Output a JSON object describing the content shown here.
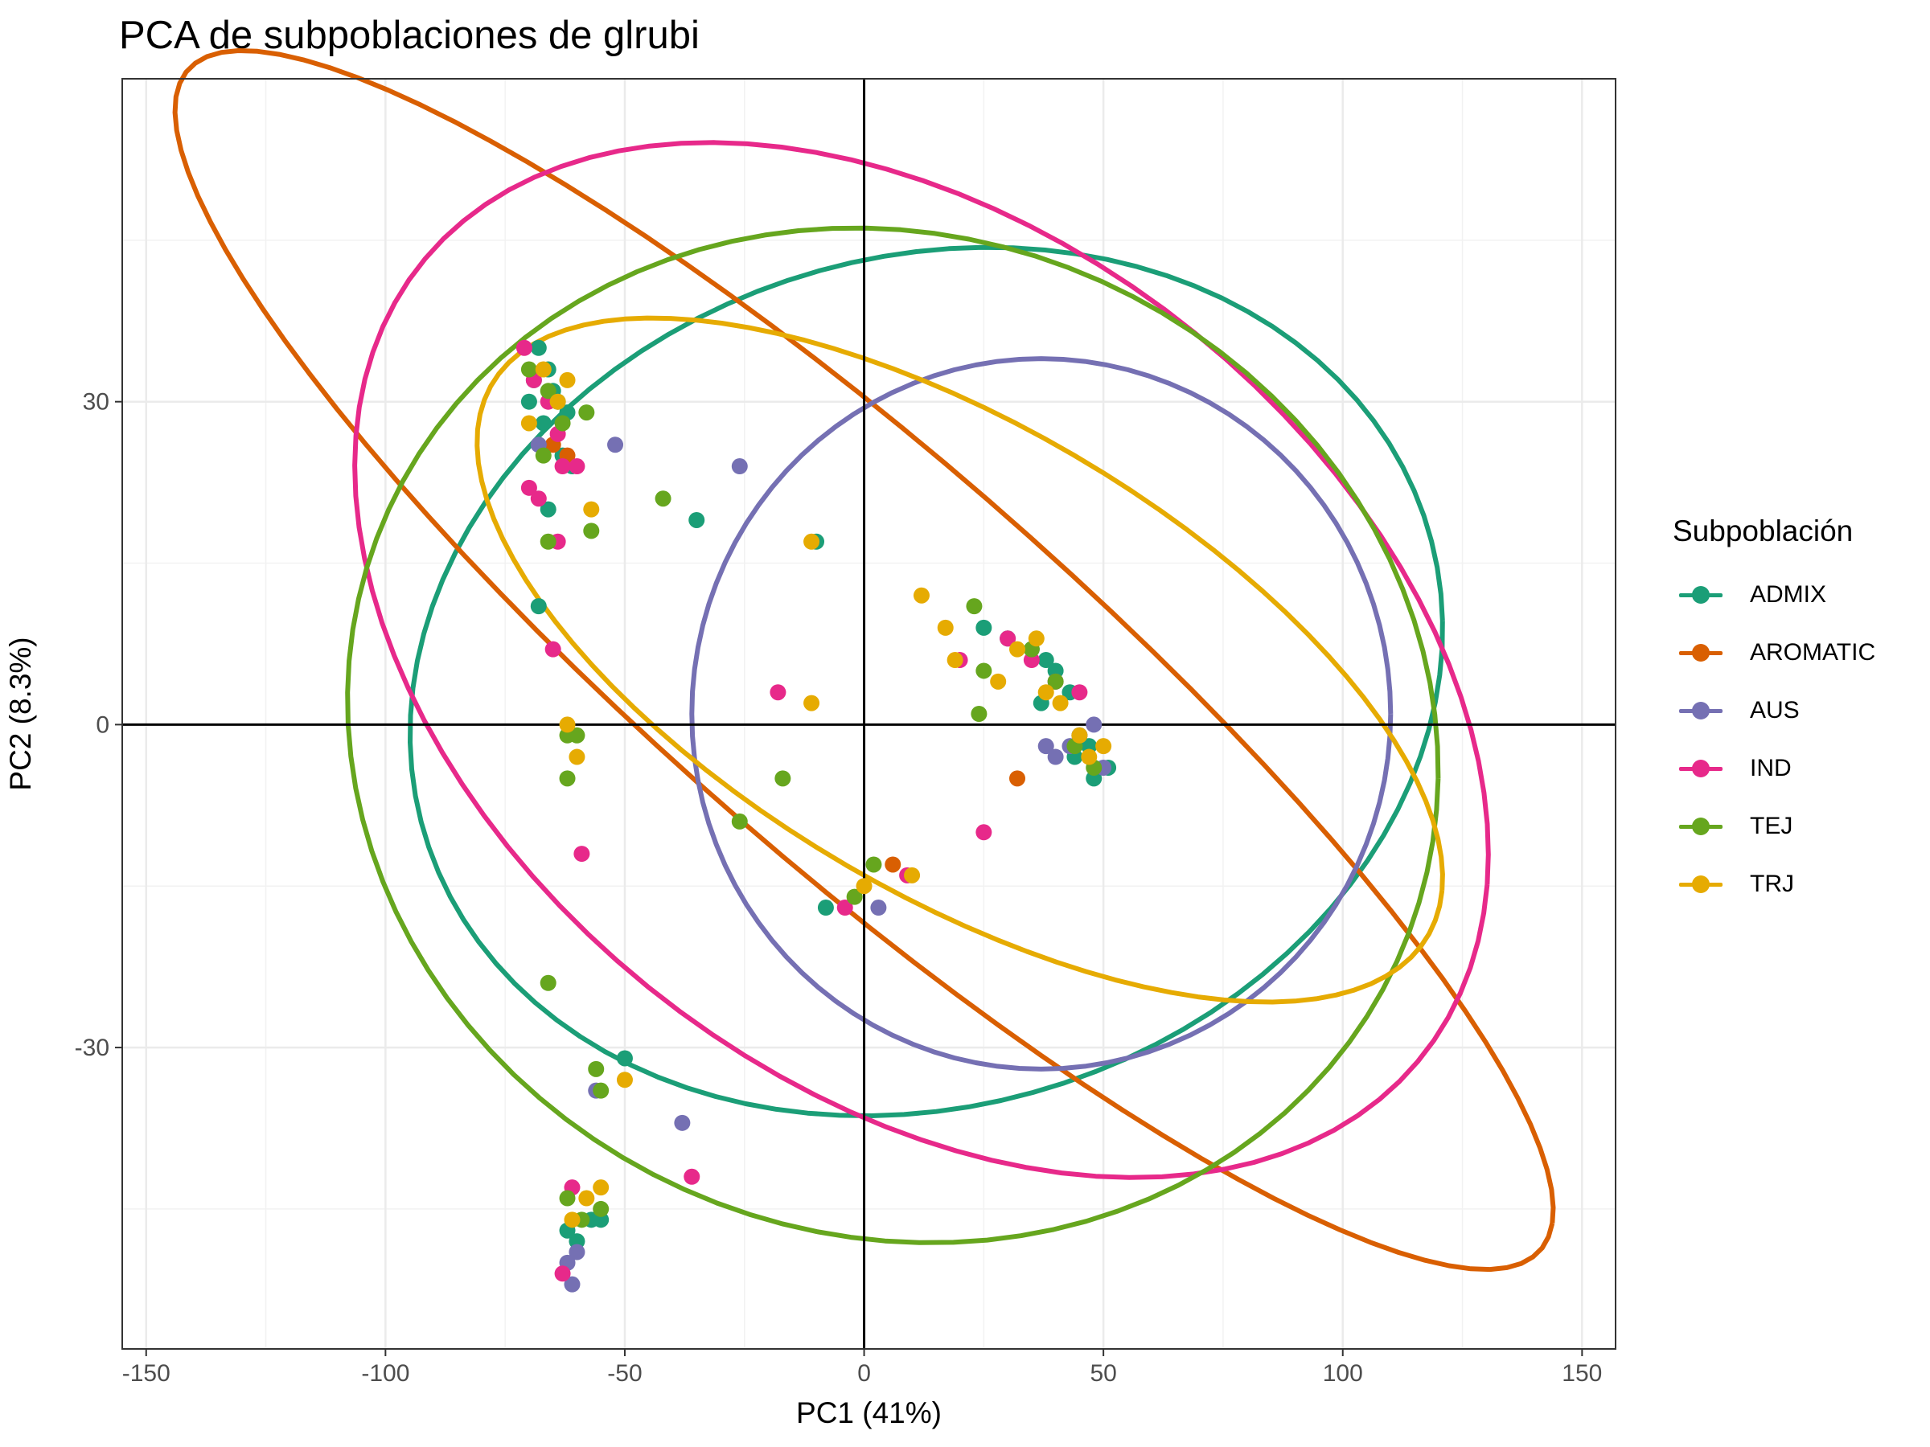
{
  "chart_data": {
    "type": "scatter",
    "title": "PCA de subpoblaciones de glrubi",
    "xlabel": "PC1 (41%)",
    "ylabel": "PC2 (8.3%)",
    "xlim": [
      -155,
      157
    ],
    "ylim": [
      -58,
      60
    ],
    "x_ticks": [
      -150,
      -100,
      -50,
      0,
      50,
      100,
      150
    ],
    "y_ticks": [
      -30,
      0,
      30
    ],
    "grid": true,
    "reference_lines": {
      "x": 0,
      "y": 0
    },
    "legend": {
      "title": "Subpoblación",
      "position": "right"
    },
    "series": [
      {
        "name": "ADMIX",
        "color": "#1B9E77",
        "x": [
          -68,
          -66,
          -65,
          -64,
          -62,
          -67,
          -69,
          -66,
          -63,
          -68,
          -70,
          -61,
          -35,
          -10,
          -8,
          25,
          30,
          35,
          38,
          40,
          43,
          37,
          45,
          47,
          51,
          48,
          44,
          -50,
          -55,
          -60,
          -62,
          -57
        ],
        "y": [
          35,
          33,
          31,
          30,
          29,
          28,
          32,
          20,
          25,
          11,
          30,
          24,
          19,
          17,
          -17,
          9,
          8,
          7,
          6,
          5,
          3,
          2,
          -1,
          -2,
          -4,
          -5,
          -3,
          -31,
          -46,
          -48,
          -47,
          -46
        ],
        "ellipse": {
          "cx": 13,
          "cy": 4,
          "rx": 108,
          "ry": 40,
          "angle": 3
        }
      },
      {
        "name": "AROMATIC",
        "color": "#D95F02",
        "x": [
          -65,
          -62,
          32,
          6
        ],
        "y": [
          26,
          25,
          -5,
          -13
        ],
        "ellipse": {
          "cx": 0,
          "cy": 6,
          "rx": 153,
          "ry": 23,
          "angle": -20
        }
      },
      {
        "name": "AUS",
        "color": "#7570B3",
        "x": [
          -68,
          -52,
          -26,
          3,
          40,
          45,
          48,
          43,
          38,
          50,
          -56,
          -38,
          -60,
          -62,
          -61
        ],
        "y": [
          26,
          26,
          24,
          -17,
          -3,
          -1,
          0,
          -2,
          -2,
          -4,
          -34,
          -37,
          -49,
          -50,
          -52
        ],
        "ellipse": {
          "cx": 37,
          "cy": 1,
          "rx": 73,
          "ry": 33,
          "angle": 0
        }
      },
      {
        "name": "IND",
        "color": "#E7298A",
        "x": [
          -71,
          -69,
          -66,
          -64,
          -63,
          -60,
          -70,
          -68,
          -65,
          -64,
          -18,
          -4,
          9,
          25,
          20,
          30,
          35,
          40,
          45,
          -59,
          -36,
          -61,
          -63
        ],
        "y": [
          35,
          32,
          30,
          27,
          24,
          24,
          22,
          21,
          7,
          17,
          3,
          -17,
          -14,
          -10,
          6,
          8,
          6,
          4,
          3,
          -12,
          -42,
          -43,
          -51
        ],
        "ellipse": {
          "cx": 12,
          "cy": 6,
          "rx": 120,
          "ry": 44,
          "angle": -10
        }
      },
      {
        "name": "TEJ",
        "color": "#66A61E",
        "x": [
          -70,
          -66,
          -63,
          -58,
          -67,
          -66,
          -57,
          -42,
          -62,
          -62,
          -60,
          -26,
          -17,
          -2,
          2,
          23,
          25,
          24,
          35,
          40,
          44,
          48,
          -66,
          -56,
          -55,
          -62,
          -59,
          -55
        ],
        "y": [
          33,
          31,
          28,
          29,
          25,
          17,
          18,
          21,
          -1,
          -5,
          -1,
          -9,
          -5,
          -16,
          -13,
          11,
          5,
          1,
          7,
          4,
          -2,
          -4,
          -24,
          -32,
          -34,
          -44,
          -46,
          -45
        ],
        "ellipse": {
          "cx": 6,
          "cy": -1,
          "rx": 114,
          "ry": 47,
          "angle": -2
        }
      },
      {
        "name": "TRJ",
        "color": "#E6AB02",
        "x": [
          -70,
          -67,
          -64,
          -62,
          -57,
          -11,
          -11,
          -62,
          -60,
          0,
          12,
          17,
          19,
          28,
          32,
          36,
          38,
          41,
          45,
          47,
          50,
          10,
          -50,
          -55,
          -61,
          -58
        ],
        "y": [
          28,
          33,
          30,
          32,
          20,
          17,
          2,
          0,
          -3,
          -15,
          12,
          9,
          6,
          4,
          7,
          8,
          3,
          2,
          -1,
          -3,
          -2,
          -14,
          -33,
          -43,
          -46,
          -44
        ],
        "ellipse": {
          "cx": 20,
          "cy": 6,
          "rx": 103,
          "ry": 24,
          "angle": -12
        }
      }
    ]
  }
}
